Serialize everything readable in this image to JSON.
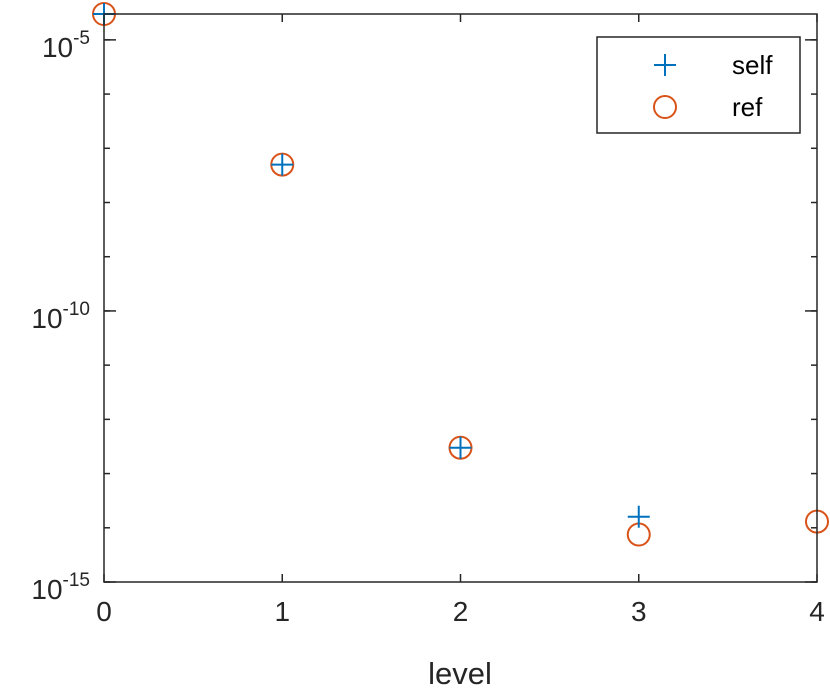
{
  "chart_data": {
    "type": "scatter",
    "title": "",
    "xlabel": "level",
    "ylabel": "",
    "xlim": [
      0,
      4
    ],
    "ylim": [
      1e-15,
      3e-05
    ],
    "y_scale": "log",
    "grid": false,
    "legend_position": "top-right",
    "x_ticks": [
      {
        "value": 0,
        "label": "0"
      },
      {
        "value": 1,
        "label": "1"
      },
      {
        "value": 2,
        "label": "2"
      },
      {
        "value": 3,
        "label": "3"
      },
      {
        "value": 4,
        "label": "4"
      }
    ],
    "y_ticks": [
      {
        "value": 1e-15,
        "base": "10",
        "exp": "-15"
      },
      {
        "value": 1e-10,
        "base": "10",
        "exp": "-10"
      },
      {
        "value": 1e-05,
        "base": "10",
        "exp": "-5"
      }
    ],
    "series": [
      {
        "name": "self",
        "marker": "plus",
        "color": "#0072BD",
        "x": [
          0,
          1,
          2,
          3
        ],
        "y": [
          3e-05,
          5e-08,
          3e-13,
          1.6e-14
        ]
      },
      {
        "name": "ref",
        "marker": "circle",
        "color": "#D95319",
        "x": [
          0,
          1,
          2,
          3,
          4
        ],
        "y": [
          3e-05,
          5e-08,
          3e-13,
          7.5e-15,
          1.3e-14
        ]
      }
    ]
  }
}
